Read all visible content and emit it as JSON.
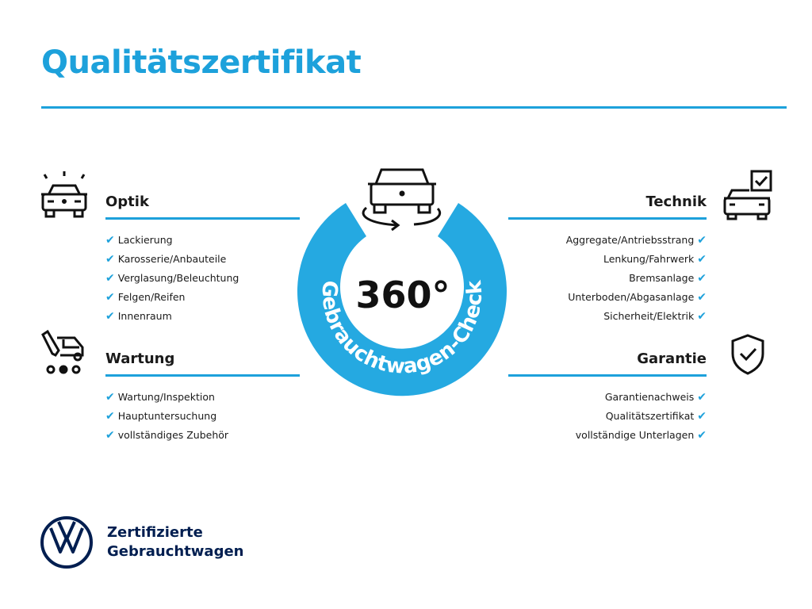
{
  "title": "Qualitätszertifikat",
  "badge": {
    "value": "360°",
    "ring_text": "Gebrauchtwagen-Check"
  },
  "sections": {
    "optik": {
      "heading": "Optik",
      "items": [
        "Lackierung",
        "Karosserie/Anbauteile",
        "Verglasung/Beleuchtung",
        "Felgen/Reifen",
        "Innenraum"
      ]
    },
    "wartung": {
      "heading": "Wartung",
      "items": [
        "Wartung/Inspektion",
        "Hauptuntersuchung",
        "vollständiges Zubehör"
      ]
    },
    "technik": {
      "heading": "Technik",
      "items": [
        "Aggregate/Antriebsstrang",
        "Lenkung/Fahrwerk",
        "Bremsanlage",
        "Unterboden/Abgasanlage",
        "Sicherheit/Elektrik"
      ]
    },
    "garantie": {
      "heading": "Garantie",
      "items": [
        "Garantienachweis",
        "Qualitätszertifikat",
        "vollständige Unterlagen"
      ]
    }
  },
  "check_glyph": "✔",
  "footer": {
    "line1": "Zertifizierte",
    "line2": "Gebrauchtwagen"
  },
  "colors": {
    "accent": "#1da1db",
    "ring": "#25a9e1",
    "brand": "#001e50"
  }
}
